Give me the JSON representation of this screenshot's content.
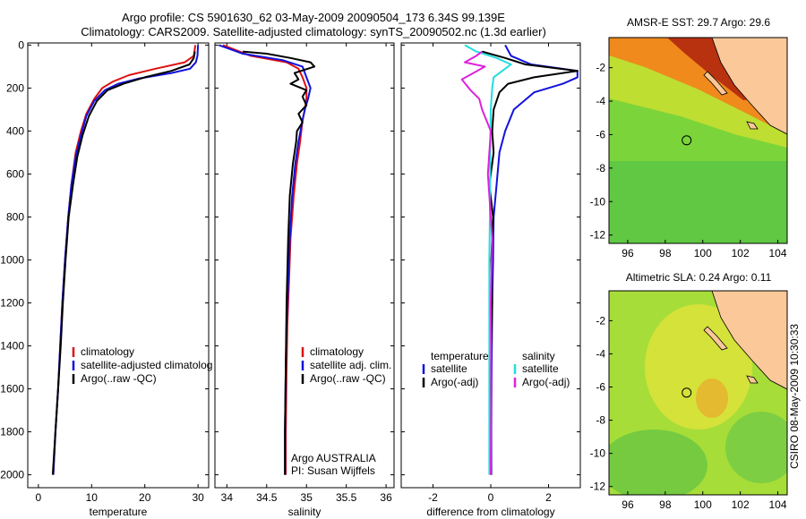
{
  "header": {
    "line1": "Argo profile: CS 5901630_62 03-May-2009 20090504_173 6.34S 99.139E",
    "line2": "Climatology: CARS2009. Satellite-adjusted climatology: synTS_20090502.nc (1.3d earlier)"
  },
  "side_label": "CSIRO 08-May-2009 10:30:33",
  "colors": {
    "red": "#dd1111",
    "blue": "#1111dd",
    "black": "#000000",
    "cyan": "#22dddd",
    "magenta": "#dd22dd",
    "land": "#fbc89a"
  },
  "chart_data": [
    {
      "type": "line",
      "id": "temperature",
      "xlabel": "temperature",
      "xlim": [
        -2,
        32
      ],
      "xticks": [
        0,
        10,
        20,
        30
      ],
      "ylim": [
        2060,
        -10
      ],
      "yticks": [
        0,
        200,
        400,
        600,
        800,
        1000,
        1200,
        1400,
        1600,
        1800,
        2000
      ],
      "legend": [
        "climatology",
        "satellite-adjusted climatolog",
        "Argo(..raw -QC)"
      ],
      "series": [
        {
          "name": "climatology",
          "color": "red",
          "x": [
            29.5,
            29.2,
            27.5,
            22,
            17,
            14,
            12,
            10.5,
            9,
            8,
            7,
            6.2,
            5.6,
            5,
            4.5,
            4.1,
            3.7,
            3.2,
            2.8
          ],
          "y": [
            0,
            50,
            80,
            110,
            140,
            170,
            200,
            250,
            320,
            400,
            500,
            650,
            800,
            1000,
            1200,
            1400,
            1600,
            1800,
            2000
          ]
        },
        {
          "name": "satellite-adjusted climatolog",
          "color": "blue",
          "x": [
            30,
            29.9,
            29.6,
            28.5,
            25,
            19,
            15,
            12.5,
            10.5,
            9,
            8,
            7,
            6.2,
            5.6,
            5,
            4.5,
            4.1,
            3.7,
            3.2,
            2.8
          ],
          "y": [
            0,
            50,
            80,
            110,
            130,
            155,
            180,
            210,
            260,
            330,
            420,
            520,
            650,
            800,
            1000,
            1200,
            1400,
            1600,
            1800,
            2000
          ]
        },
        {
          "name": "Argo(..raw -QC)",
          "color": "black",
          "x": [
            29.4,
            29.2,
            28.4,
            25,
            20,
            16,
            13,
            11,
            9.5,
            8.3,
            7.3,
            6.5,
            5.7,
            5.1,
            4.6,
            4.2,
            3.7,
            3.2,
            2.7
          ],
          "y": [
            30,
            60,
            90,
            120,
            150,
            180,
            210,
            260,
            330,
            420,
            520,
            650,
            800,
            1000,
            1200,
            1400,
            1600,
            1800,
            2000
          ]
        }
      ]
    },
    {
      "type": "line",
      "id": "salinity",
      "xlabel": "salinity",
      "xlim": [
        33.85,
        36.1
      ],
      "xticks": [
        34,
        34.5,
        35,
        35.5,
        36
      ],
      "xtick_labels": [
        "34",
        "34.5",
        "35",
        "35.5",
        "36"
      ],
      "ylim": [
        2060,
        -10
      ],
      "legend": [
        "climatology",
        "satellite adj. clim.",
        "Argo(..raw -QC)"
      ],
      "annotation": [
        "Argo AUSTRALIA",
        "PI: Susan Wijffels"
      ],
      "series": [
        {
          "name": "climatology",
          "color": "red",
          "x": [
            33.95,
            34.3,
            34.75,
            34.9,
            34.95,
            35.0,
            35.0,
            34.98,
            34.95,
            34.92,
            34.88,
            34.84,
            34.8,
            34.78,
            34.76,
            34.75,
            34.74,
            34.74
          ],
          "y": [
            0,
            50,
            80,
            110,
            150,
            200,
            250,
            300,
            350,
            450,
            550,
            700,
            900,
            1100,
            1300,
            1500,
            1800,
            2000
          ]
        },
        {
          "name": "satellite adj. clim.",
          "color": "blue",
          "x": [
            33.9,
            34.2,
            34.7,
            34.95,
            35.0,
            35.05,
            35.02,
            34.98,
            34.95,
            34.9,
            34.86,
            34.82,
            34.79,
            34.77,
            34.75,
            34.74,
            34.73,
            34.73
          ],
          "y": [
            0,
            40,
            70,
            100,
            150,
            200,
            250,
            300,
            350,
            450,
            550,
            700,
            900,
            1100,
            1300,
            1500,
            1800,
            2000
          ]
        },
        {
          "name": "Argo(..raw -QC)",
          "color": "black",
          "x": [
            34.2,
            34.5,
            34.8,
            35.05,
            35.1,
            34.85,
            34.9,
            34.8,
            35.0,
            34.95,
            35.0,
            34.9,
            34.95,
            34.88,
            34.87,
            34.83,
            34.79,
            34.77,
            34.75,
            34.74,
            34.73,
            34.73
          ],
          "y": [
            30,
            40,
            60,
            80,
            100,
            130,
            160,
            180,
            210,
            240,
            280,
            320,
            360,
            400,
            450,
            550,
            700,
            900,
            1200,
            1500,
            1800,
            2000
          ]
        }
      ]
    },
    {
      "type": "line",
      "id": "difference",
      "xlabel": "difference from climatology",
      "xlim": [
        -3.1,
        3.1
      ],
      "xticks": [
        -2,
        0,
        2
      ],
      "ylim": [
        2060,
        -10
      ],
      "legend_left_header": "temperature",
      "legend_right_header": "salinity",
      "legend_left": [
        "satellite",
        "Argo(-adj)"
      ],
      "legend_right": [
        "satellite",
        "Argo(-adj)"
      ],
      "series": [
        {
          "name": "satellite (temperature)",
          "color": "blue",
          "x": [
            0.5,
            0.7,
            1.4,
            3.0,
            3.0,
            2.5,
            1.5,
            0.8,
            0.5,
            0.3,
            0.2,
            0.1,
            0.08,
            0.05,
            0.03,
            0.02,
            0.02
          ],
          "y": [
            0,
            50,
            90,
            120,
            150,
            180,
            220,
            300,
            400,
            500,
            650,
            800,
            1000,
            1200,
            1500,
            1800,
            2000
          ]
        },
        {
          "name": "Argo(-adj) (temperature)",
          "color": "black",
          "x": [
            -0.3,
            0.5,
            1.2,
            3.0,
            1.5,
            0.6,
            0.3,
            0.1,
            0.05,
            0.1,
            -0.05,
            0.08,
            0.02,
            0.05,
            0.0,
            -0.02,
            0.01
          ],
          "y": [
            30,
            60,
            90,
            120,
            150,
            180,
            220,
            300,
            400,
            500,
            650,
            800,
            1000,
            1200,
            1500,
            1800,
            2000
          ]
        },
        {
          "name": "satellite (salinity)",
          "color": "cyan",
          "x": [
            -0.9,
            -0.5,
            0.2,
            0.7,
            0.4,
            0.1,
            0.05,
            0.0,
            -0.02,
            -0.03,
            -0.05,
            -0.05,
            -0.05,
            -0.05
          ],
          "y": [
            0,
            30,
            60,
            90,
            120,
            150,
            200,
            300,
            500,
            800,
            1000,
            1400,
            1800,
            2000
          ]
        },
        {
          "name": "Argo(-adj) (salinity)",
          "color": "magenta",
          "x": [
            -0.3,
            -0.5,
            -0.9,
            -0.2,
            -0.6,
            -1.0,
            -0.7,
            -0.4,
            -0.3,
            0.0,
            -0.1,
            0.05,
            0.0,
            0.02,
            0.0
          ],
          "y": [
            30,
            50,
            80,
            100,
            130,
            160,
            210,
            250,
            300,
            400,
            600,
            900,
            1200,
            1600,
            2000
          ]
        }
      ]
    },
    {
      "type": "heatmap",
      "id": "sst_map",
      "title": "AMSR-E SST: 29.7  Argo: 29.6",
      "xlim": [
        95,
        104.5
      ],
      "ylim": [
        -12.5,
        -0.2
      ],
      "xticks": [
        96,
        98,
        100,
        102,
        104
      ],
      "yticks": [
        -2,
        -4,
        -6,
        -8,
        -10,
        -12
      ],
      "marker": {
        "lon": 99.14,
        "lat": -6.34
      }
    },
    {
      "type": "heatmap",
      "id": "sla_map",
      "title": "Altimetric SLA: 0.24  Argo: 0.11",
      "xlim": [
        95,
        104.5
      ],
      "ylim": [
        -12.5,
        -0.2
      ],
      "xticks": [
        96,
        98,
        100,
        102,
        104
      ],
      "yticks": [
        -2,
        -4,
        -6,
        -8,
        -10,
        -12
      ],
      "marker": {
        "lon": 99.14,
        "lat": -6.34
      }
    }
  ]
}
